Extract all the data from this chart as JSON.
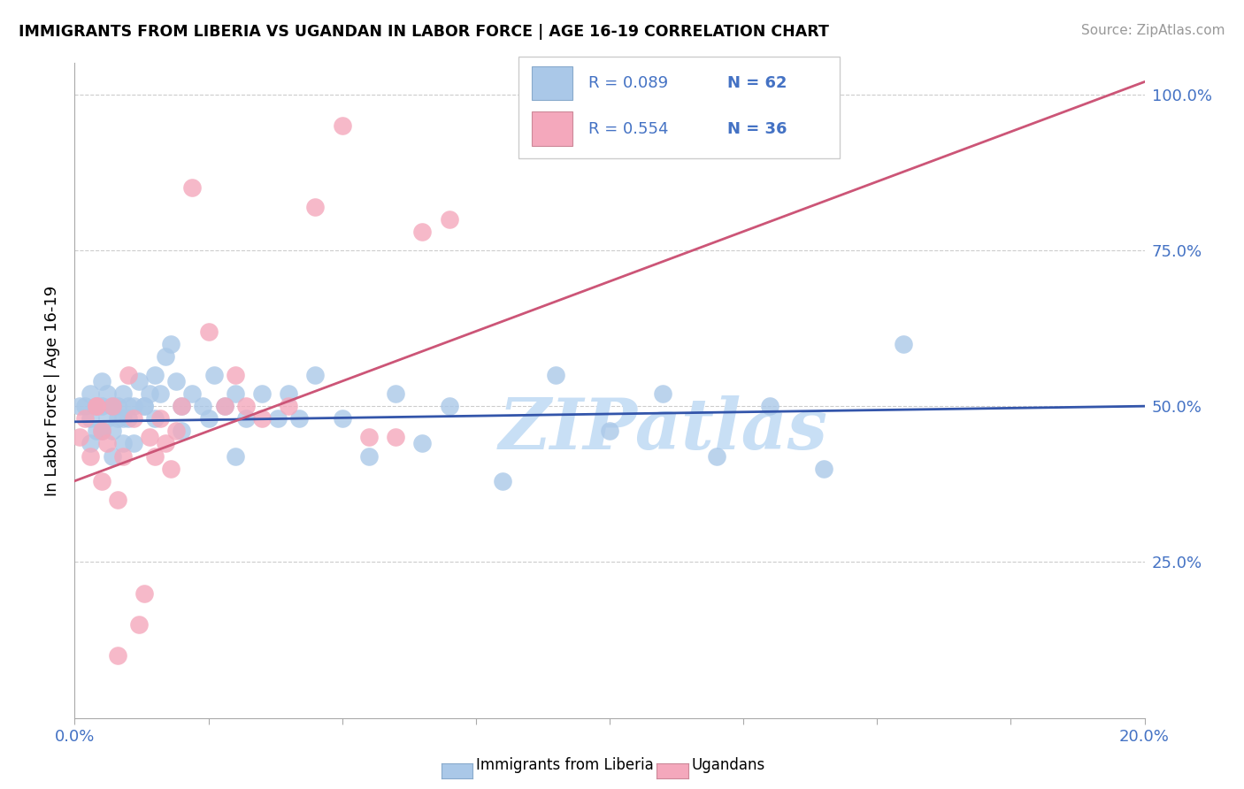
{
  "title": "IMMIGRANTS FROM LIBERIA VS UGANDAN IN LABOR FORCE | AGE 16-19 CORRELATION CHART",
  "source": "Source: ZipAtlas.com",
  "ylabel": "In Labor Force | Age 16-19",
  "xlim": [
    0.0,
    0.2
  ],
  "ylim": [
    0.0,
    1.05
  ],
  "xtick_positions": [
    0.0,
    0.025,
    0.05,
    0.075,
    0.1,
    0.125,
    0.15,
    0.175,
    0.2
  ],
  "xticklabels": [
    "0.0%",
    "",
    "",
    "",
    "",
    "",
    "",
    "",
    "20.0%"
  ],
  "ytick_positions": [
    0.0,
    0.25,
    0.5,
    0.75,
    1.0
  ],
  "yticklabels": [
    "",
    "25.0%",
    "50.0%",
    "75.0%",
    "100.0%"
  ],
  "legend_r1": "R = 0.089",
  "legend_n1": "N = 62",
  "legend_r2": "R = 0.554",
  "legend_n2": "N = 36",
  "blue_color": "#aac8e8",
  "pink_color": "#f4a8bc",
  "blue_line_color": "#3355aa",
  "pink_line_color": "#cc5577",
  "axis_label_color": "#4472c4",
  "text_color_legend": "#4472c4",
  "watermark_color": "#c8dff5",
  "grid_color": "#cccccc",
  "blue_scatter_x": [
    0.001,
    0.002,
    0.003,
    0.003,
    0.004,
    0.004,
    0.005,
    0.005,
    0.006,
    0.006,
    0.007,
    0.007,
    0.008,
    0.008,
    0.009,
    0.009,
    0.01,
    0.01,
    0.011,
    0.012,
    0.013,
    0.014,
    0.015,
    0.016,
    0.017,
    0.018,
    0.019,
    0.02,
    0.022,
    0.024,
    0.026,
    0.028,
    0.03,
    0.032,
    0.035,
    0.038,
    0.04,
    0.042,
    0.045,
    0.05,
    0.055,
    0.06,
    0.065,
    0.07,
    0.08,
    0.09,
    0.1,
    0.11,
    0.12,
    0.13,
    0.14,
    0.155,
    0.003,
    0.005,
    0.007,
    0.009,
    0.011,
    0.013,
    0.015,
    0.02,
    0.025,
    0.03
  ],
  "blue_scatter_y": [
    0.5,
    0.5,
    0.52,
    0.48,
    0.5,
    0.46,
    0.54,
    0.5,
    0.52,
    0.48,
    0.5,
    0.46,
    0.5,
    0.48,
    0.52,
    0.44,
    0.5,
    0.48,
    0.5,
    0.54,
    0.5,
    0.52,
    0.55,
    0.52,
    0.58,
    0.6,
    0.54,
    0.5,
    0.52,
    0.5,
    0.55,
    0.5,
    0.52,
    0.48,
    0.52,
    0.48,
    0.52,
    0.48,
    0.55,
    0.48,
    0.42,
    0.52,
    0.44,
    0.5,
    0.38,
    0.55,
    0.46,
    0.52,
    0.42,
    0.5,
    0.4,
    0.6,
    0.44,
    0.46,
    0.42,
    0.48,
    0.44,
    0.5,
    0.48,
    0.46,
    0.48,
    0.42
  ],
  "pink_scatter_x": [
    0.001,
    0.002,
    0.003,
    0.004,
    0.005,
    0.005,
    0.006,
    0.007,
    0.008,
    0.009,
    0.01,
    0.011,
    0.012,
    0.013,
    0.014,
    0.015,
    0.016,
    0.017,
    0.018,
    0.019,
    0.02,
    0.022,
    0.025,
    0.028,
    0.03,
    0.032,
    0.035,
    0.04,
    0.045,
    0.05,
    0.055,
    0.06,
    0.065,
    0.07,
    0.004,
    0.008
  ],
  "pink_scatter_y": [
    0.45,
    0.48,
    0.42,
    0.5,
    0.38,
    0.46,
    0.44,
    0.5,
    0.35,
    0.42,
    0.55,
    0.48,
    0.15,
    0.2,
    0.45,
    0.42,
    0.48,
    0.44,
    0.4,
    0.46,
    0.5,
    0.85,
    0.62,
    0.5,
    0.55,
    0.5,
    0.48,
    0.5,
    0.82,
    0.95,
    0.45,
    0.45,
    0.78,
    0.8,
    0.5,
    0.1
  ],
  "blue_line_x0": 0.0,
  "blue_line_x1": 0.2,
  "blue_line_y0": 0.475,
  "blue_line_y1": 0.5,
  "pink_line_x0": 0.0,
  "pink_line_x1": 0.2,
  "pink_line_y0": 0.38,
  "pink_line_y1": 1.02
}
